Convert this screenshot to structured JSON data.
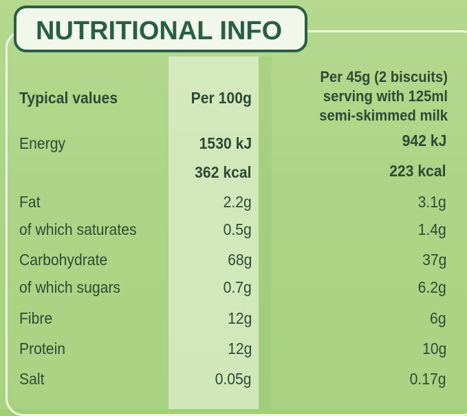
{
  "title": "NUTRITIONAL INFO",
  "headers": {
    "label": "Typical values",
    "per100": "Per 100g",
    "perServing": [
      "Per 45g (2 biscuits)",
      "serving with 125ml",
      "semi-skimmed milk"
    ]
  },
  "rows": [
    {
      "label": "Energy",
      "per100": "1530 kJ",
      "perServing": "942 kJ"
    },
    {
      "label": "",
      "per100": "362 kcal",
      "perServing": "223 kcal"
    },
    {
      "label": "Fat",
      "per100": "2.2g",
      "perServing": "3.1g"
    },
    {
      "label": "of which saturates",
      "per100": "0.5g",
      "perServing": "1.4g"
    },
    {
      "label": "Carbohydrate",
      "per100": "68g",
      "perServing": "37g"
    },
    {
      "label": "of which sugars",
      "per100": "0.7g",
      "perServing": "6.2g"
    },
    {
      "label": "Fibre",
      "per100": "12g",
      "perServing": "6g"
    },
    {
      "label": "Protein",
      "per100": "12g",
      "perServing": "10g"
    },
    {
      "label": "Salt",
      "per100": "0.05g",
      "perServing": "0.17g"
    }
  ],
  "colors": {
    "background": "#acd486",
    "titleText": "#2a5e45",
    "bodyText": "#2d4a36"
  }
}
